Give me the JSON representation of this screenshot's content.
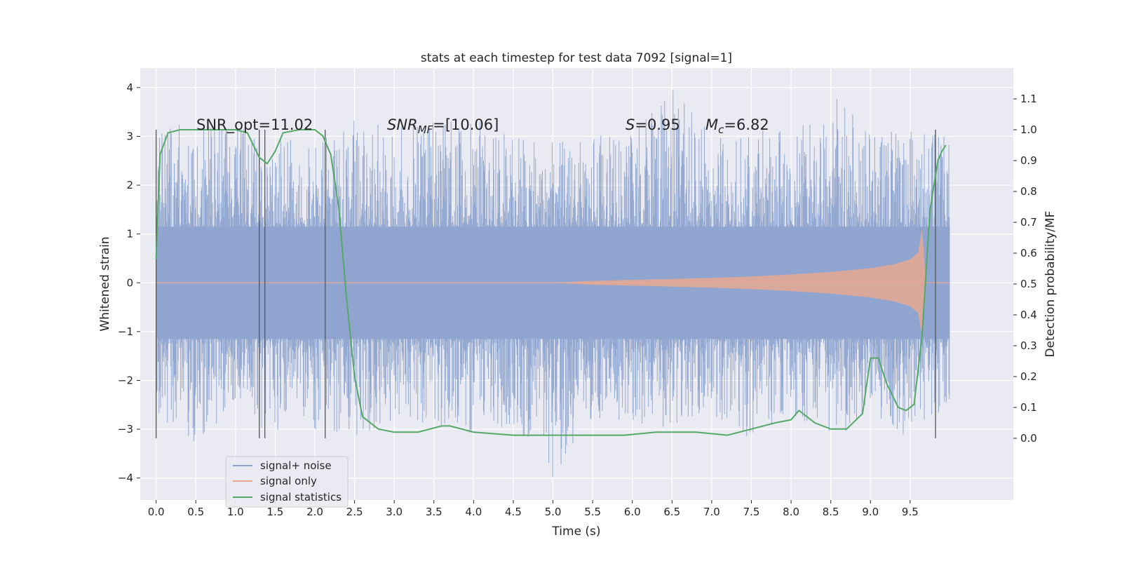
{
  "chart_data": {
    "type": "line",
    "title": "stats at each timestep for test data 7092 [signal=1]",
    "xlabel": "Time (s)",
    "ylabel": "Whitened strain",
    "y2label": "Detection probability/MF",
    "xlim": [
      -0.2,
      10.8
    ],
    "ylim": [
      -4.45,
      4.4
    ],
    "y2lim": [
      -0.2,
      1.2
    ],
    "xticks": [
      "0.0",
      "0.5",
      "1.0",
      "1.5",
      "2.0",
      "2.5",
      "3.0",
      "3.5",
      "4.0",
      "4.5",
      "5.0",
      "5.5",
      "6.0",
      "6.5",
      "7.0",
      "7.5",
      "8.0",
      "8.5",
      "9.0",
      "9.5"
    ],
    "xtick_values": [
      0.0,
      0.5,
      1.0,
      1.5,
      2.0,
      2.5,
      3.0,
      3.5,
      4.0,
      4.5,
      5.0,
      5.5,
      6.0,
      6.5,
      7.0,
      7.5,
      8.0,
      8.5,
      9.0,
      9.5
    ],
    "yticks": [
      "−4",
      "−3",
      "−2",
      "−1",
      "0",
      "1",
      "2",
      "3",
      "4"
    ],
    "ytick_values": [
      -4,
      -3,
      -2,
      -1,
      0,
      1,
      2,
      3,
      4
    ],
    "y2ticks": [
      "0.0",
      "0.1",
      "0.2",
      "0.3",
      "0.4",
      "0.5",
      "0.6",
      "0.7",
      "0.8",
      "0.9",
      "1.0",
      "1.1"
    ],
    "y2tick_values": [
      0.0,
      0.1,
      0.2,
      0.3,
      0.4,
      0.5,
      0.6,
      0.7,
      0.8,
      0.9,
      1.0,
      1.1
    ],
    "grid": true,
    "legend_position": "lower-left",
    "legend": [
      {
        "label": "signal+ noise",
        "color": "#8fa5cf"
      },
      {
        "label": "signal only",
        "color": "#e8a890"
      },
      {
        "label": "signal statistics",
        "color": "#55a868"
      }
    ],
    "annotations": {
      "snr_opt": "SNR_opt=11.02",
      "snr_mf_base": "SNR",
      "snr_mf_sub": "MF",
      "snr_mf_value": "=[10.06]",
      "s_base": "S",
      "s_value": "=0.95",
      "mc_base": "M",
      "mc_sub": "c",
      "mc_value": "=6.82"
    },
    "series": [
      {
        "name": "signal+ noise",
        "note_shape": "dense noise envelope",
        "x": [
          0.0,
          0.5,
          1.0,
          1.5,
          2.0,
          2.5,
          3.0,
          3.5,
          4.0,
          4.5,
          5.0,
          5.5,
          6.0,
          6.5,
          7.0,
          7.5,
          8.0,
          8.5,
          9.0,
          9.5,
          10.0
        ],
        "envelope_max": [
          3.1,
          3.4,
          3.2,
          3.0,
          3.0,
          3.4,
          3.2,
          3.3,
          3.5,
          3.0,
          2.9,
          3.0,
          3.2,
          4.0,
          3.1,
          3.2,
          3.1,
          3.9,
          3.1,
          3.1,
          3.0
        ],
        "envelope_min": [
          -2.7,
          -3.3,
          -2.7,
          -3.2,
          -3.0,
          -3.2,
          -2.8,
          -2.9,
          -3.2,
          -2.9,
          -4.0,
          -2.8,
          -2.9,
          -3.0,
          -2.8,
          -3.2,
          -2.8,
          -3.2,
          -2.8,
          -3.2,
          -2.5
        ]
      },
      {
        "name": "signal only",
        "x": [
          5.0,
          5.5,
          6.0,
          6.5,
          7.0,
          7.5,
          8.0,
          8.5,
          9.0,
          9.3,
          9.5,
          9.6,
          9.65,
          9.7
        ],
        "amplitude": [
          0.0,
          0.04,
          0.06,
          0.08,
          0.1,
          0.13,
          0.17,
          0.22,
          0.3,
          0.38,
          0.48,
          0.62,
          1.1,
          0.0
        ]
      },
      {
        "name": "signal statistics",
        "x": [
          0.0,
          0.05,
          0.15,
          0.3,
          0.6,
          1.0,
          1.15,
          1.3,
          1.4,
          1.5,
          1.6,
          1.8,
          2.0,
          2.1,
          2.2,
          2.3,
          2.4,
          2.5,
          2.6,
          2.8,
          3.0,
          3.3,
          3.6,
          3.7,
          4.0,
          4.5,
          5.0,
          5.5,
          5.9,
          6.3,
          6.8,
          7.2,
          7.5,
          7.8,
          8.0,
          8.1,
          8.3,
          8.5,
          8.7,
          8.9,
          9.0,
          9.1,
          9.2,
          9.35,
          9.45,
          9.55,
          9.65,
          9.75,
          9.85,
          9.9,
          9.95
        ],
        "values": [
          0.58,
          0.92,
          0.99,
          1.0,
          1.0,
          1.0,
          0.99,
          0.91,
          0.89,
          0.93,
          0.99,
          1.0,
          1.0,
          0.98,
          0.92,
          0.75,
          0.45,
          0.2,
          0.07,
          0.03,
          0.02,
          0.02,
          0.04,
          0.04,
          0.02,
          0.01,
          0.01,
          0.01,
          0.01,
          0.02,
          0.02,
          0.01,
          0.03,
          0.05,
          0.06,
          0.09,
          0.05,
          0.03,
          0.03,
          0.08,
          0.26,
          0.26,
          0.18,
          0.1,
          0.09,
          0.11,
          0.33,
          0.74,
          0.9,
          0.93,
          0.95
        ]
      }
    ],
    "vertical_markers": [
      0.0,
      1.3,
      1.37,
      2.13,
      9.82
    ]
  }
}
